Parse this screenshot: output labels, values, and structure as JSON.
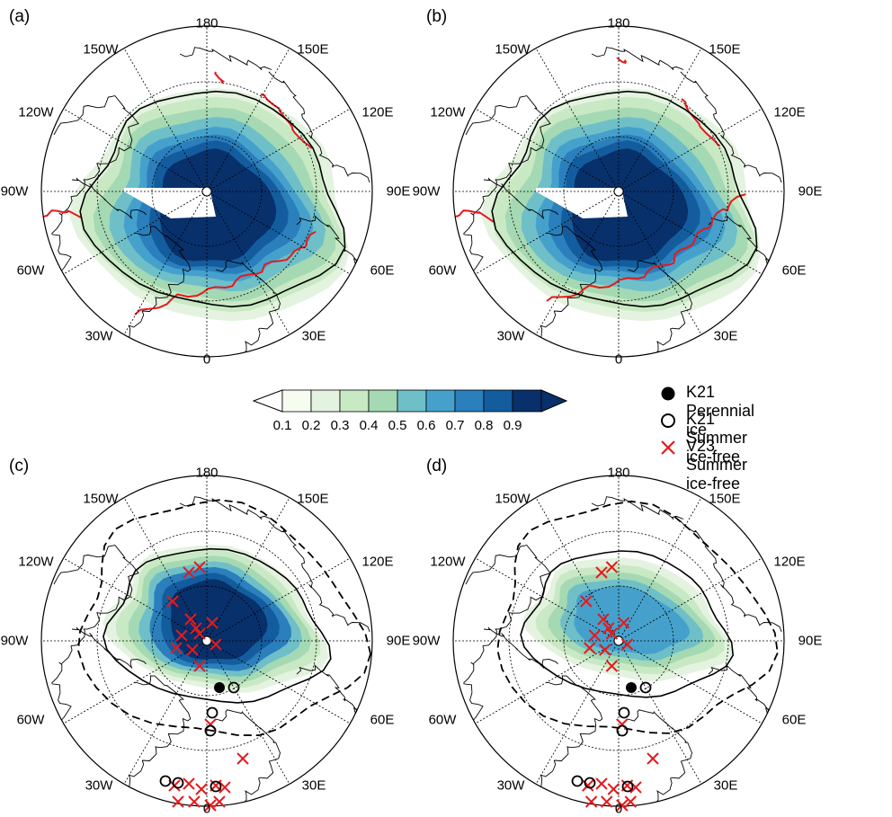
{
  "panels": [
    {
      "id": "a",
      "label": "(a)"
    },
    {
      "id": "b",
      "label": "(b)"
    },
    {
      "id": "c",
      "label": "(c)"
    },
    {
      "id": "d",
      "label": "(d)"
    }
  ],
  "longitude_labels": {
    "lon_180": "180",
    "lon_150W": "150W",
    "lon_150E": "150E",
    "lon_120W": "120W",
    "lon_120E": "120E",
    "lon_90W": "90W",
    "lon_90E": "90E",
    "lon_60W": "60W",
    "lon_60E": "60E",
    "lon_30W": "30W",
    "lon_30E": "30E",
    "lon_0": "0"
  },
  "colorbar": {
    "ticks": [
      "0.1",
      "0.2",
      "0.3",
      "0.4",
      "0.5",
      "0.6",
      "0.7",
      "0.8",
      "0.9"
    ],
    "colors": [
      "#f7fcf0",
      "#e4f3df",
      "#c9e9c4",
      "#a4d9b3",
      "#6fbfc9",
      "#45a1cc",
      "#2a7fbc",
      "#135d9e",
      "#08306b"
    ]
  },
  "legend": [
    {
      "symbol": "filled-circle",
      "label": "K21 Perennial ice"
    },
    {
      "symbol": "open-circle",
      "label": "K21 Summer ice-free"
    },
    {
      "symbol": "red-cross",
      "label": "V23 Summer ice-free"
    }
  ],
  "colors": {
    "frame": "#000000",
    "coast": "#000000",
    "red_line": "#e41a1c",
    "cross": "#e41a1c"
  }
}
